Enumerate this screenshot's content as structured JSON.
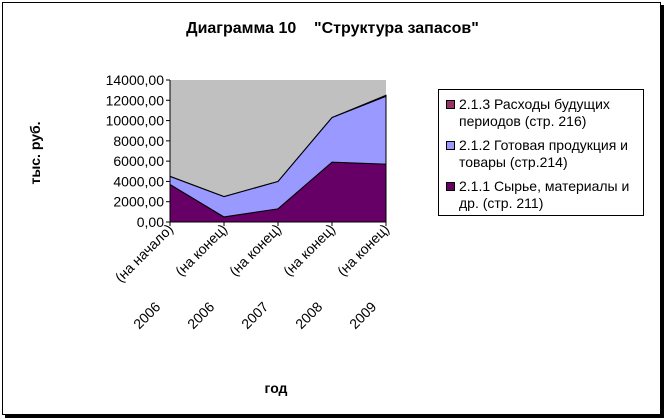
{
  "chart_data": {
    "type": "area",
    "title": "Диаграмма 10    \"Структура запасов\"",
    "xlabel": "год",
    "ylabel": "тыс. руб.",
    "ylim": [
      0,
      14000
    ],
    "yticks": [
      "0,00",
      "2000,00",
      "4000,00",
      "6000,00",
      "8000,00",
      "10000,00",
      "12000,00",
      "14000,00"
    ],
    "categories": [
      {
        "year": "2006",
        "note": "(на начало)"
      },
      {
        "year": "2006",
        "note": "(на конец)"
      },
      {
        "year": "2007",
        "note": "(на конец)"
      },
      {
        "year": "2008",
        "note": "(на конец)"
      },
      {
        "year": "2009",
        "note": "(на конец)"
      }
    ],
    "stacked": true,
    "grid": false,
    "legend_position": "right",
    "series": [
      {
        "name": "2.1.1 Сырье, материалы и др. (стр. 211)",
        "color": "#660066",
        "values": [
          3700,
          500,
          1300,
          5900,
          5700
        ]
      },
      {
        "name": "2.1.2 Готовая продукция и товары (стр.214)",
        "color": "#9999ff",
        "values": [
          800,
          2000,
          2700,
          4400,
          6700
        ]
      },
      {
        "name": "2.1.3 Расходы будущих периодов (стр. 216)",
        "color": "#993366",
        "values": [
          0,
          0,
          0,
          0,
          100
        ]
      }
    ],
    "plot_background": "#c0c0c0"
  }
}
